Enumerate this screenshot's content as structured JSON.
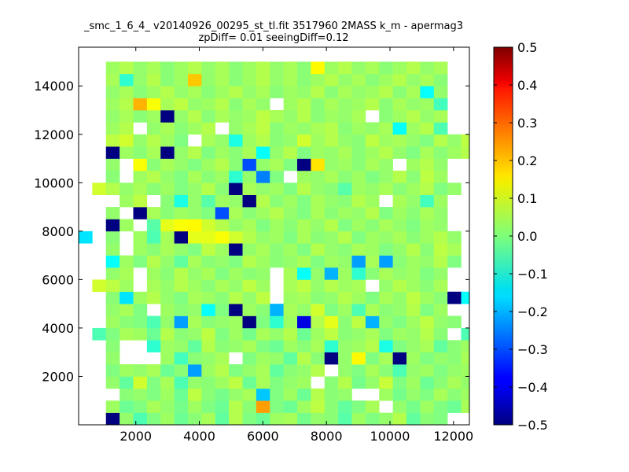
{
  "chart_data": {
    "type": "heatmap",
    "title_line1": "_smc_1_6_4_ v20140926_00295_st_tl.fit 3517960 2MASS k_m - apermag3",
    "title_line2": "zpDiff= 0.01 seeingDiff=0.12",
    "xlim": [
      200,
      12500
    ],
    "ylim": [
      0,
      15600
    ],
    "xticks": [
      2000,
      4000,
      6000,
      8000,
      10000,
      12000
    ],
    "xtick_labels": [
      "2000",
      "4000",
      "6000",
      "8000",
      "10000",
      "12000"
    ],
    "yticks": [
      2000,
      4000,
      6000,
      8000,
      10000,
      12000,
      14000
    ],
    "ytick_labels": [
      "2000",
      "4000",
      "6000",
      "8000",
      "10000",
      "12000",
      "14000"
    ],
    "colorbar": {
      "colormap": "jet",
      "range": [
        -0.5,
        0.5
      ],
      "ticks": [
        -0.5,
        -0.4,
        -0.3,
        -0.2,
        -0.1,
        0.0,
        0.1,
        0.2,
        0.3,
        0.4,
        0.5
      ],
      "tick_labels": [
        "−0.5",
        "−0.4",
        "−0.3",
        "−0.2",
        "−0.1",
        "0.0",
        "0.1",
        "0.2",
        "0.3",
        "0.4",
        "0.5"
      ]
    },
    "grid": false,
    "legend": "none",
    "cells": {
      "x_start": 200,
      "y_start": 0,
      "cell_width": 430,
      "cell_height": 500,
      "value_grid": [
        "..##############..........",
        "..##############.#########",
        "..##############..#......#",
        "..##############.#.......#",
        "..##############.........#",
        "..##############.........#",
        "..##############.........#",
        "..####################.###",
        "###########################",
        "###########################",
        "..........................."
      ],
      "rows": [
        {
          "y": 500,
          "values": [
            null,
            null,
            -0.5,
            0.02,
            -0.05,
            0.0,
            0.03,
            -0.02,
            0.01,
            0.04,
            -0.03,
            0.05,
            0.0,
            -0.02,
            0.03,
            0.04,
            -0.01,
            0.02,
            0.01,
            -0.04,
            0.03,
            0.0,
            0.02,
            0.05,
            -0.03,
            0.01,
            0.0,
            null,
            null
          ]
        },
        {
          "y": 1000,
          "values": [
            null,
            null,
            0.03,
            -0.02,
            0.0,
            0.04,
            0.02,
            -0.01,
            0.03,
            0.0,
            -0.02,
            0.05,
            0.01,
            0.22,
            0.0,
            -0.02,
            0.03,
            0.06,
            0.01,
            -0.03,
            0.0,
            0.04,
            null,
            0.02,
            -0.01,
            0.03,
            0.0,
            -0.02,
            0.04
          ]
        },
        {
          "y": 1500,
          "values": [
            null,
            null,
            null,
            0.01,
            0.02,
            0.0,
            0.03,
            -0.02,
            0.06,
            0.01,
            -0.01,
            0.02,
            0.04,
            -0.18,
            0.0,
            0.03,
            -0.02,
            0.05,
            0.01,
            0.02,
            null,
            null,
            0.03,
            -0.01,
            0.02,
            0.0,
            0.04,
            0.01,
            0.03
          ]
        },
        {
          "y": 2000,
          "values": [
            null,
            null,
            0.02,
            -0.03,
            0.08,
            0.0,
            0.04,
            -0.05,
            0.02,
            0.01,
            0.03,
            0.06,
            -0.02,
            0.04,
            0.0,
            0.02,
            0.03,
            null,
            0.01,
            0.05,
            -0.01,
            0.02,
            0.07,
            0.0,
            0.03,
            -0.02,
            0.01,
            0.04,
            0.02
          ]
        },
        {
          "y": 2500,
          "values": [
            null,
            null,
            0.0,
            0.03,
            0.02,
            0.04,
            -0.02,
            0.01,
            -0.22,
            0.03,
            0.05,
            0.0,
            0.02,
            0.04,
            -0.03,
            0.01,
            0.02,
            0.05,
            null,
            0.02,
            0.0,
            0.04,
            0.01,
            -0.05,
            0.02,
            0.03,
            0.0,
            0.02,
            0.03
          ]
        },
        {
          "y": 3000,
          "values": [
            null,
            null,
            0.02,
            null,
            null,
            null,
            0.03,
            -0.06,
            0.01,
            0.02,
            0.04,
            null,
            0.0,
            0.03,
            0.02,
            -0.03,
            0.05,
            0.01,
            -0.5,
            0.02,
            0.13,
            0.0,
            0.04,
            -0.5,
            0.03,
            0.0,
            0.02,
            0.01,
            0.04
          ]
        },
        {
          "y": 3500,
          "values": [
            null,
            null,
            0.01,
            null,
            null,
            -0.08,
            0.03,
            0.02,
            -0.03,
            0.05,
            0.01,
            0.02,
            0.04,
            0.0,
            -0.02,
            0.03,
            0.01,
            0.04,
            -0.08,
            0.02,
            0.03,
            0.05,
            -0.1,
            0.0,
            0.02,
            0.04,
            -0.03,
            0.01,
            0.03
          ]
        },
        {
          "y": 4000,
          "values": [
            null,
            -0.05,
            0.0,
            0.04,
            0.03,
            -0.02,
            0.05,
            0.01,
            0.02,
            0.06,
            0.0,
            0.03,
            -0.01,
            0.04,
            0.02,
            0.05,
            -0.02,
            0.03,
            0.06,
            0.01,
            0.02,
            0.04,
            0.0,
            0.03,
            0.02,
            0.05,
            0.01,
            null,
            -0.05
          ]
        },
        {
          "y": 4500,
          "values": [
            null,
            null,
            0.03,
            0.01,
            0.0,
            -0.05,
            0.02,
            -0.22,
            0.04,
            0.01,
            0.02,
            0.03,
            -0.5,
            0.0,
            -0.08,
            0.03,
            -0.4,
            0.05,
            0.1,
            0.01,
            0.06,
            -0.2,
            0.02,
            0.0,
            0.03,
            0.06,
            0.02,
            0.01,
            null
          ]
        },
        {
          "y": 5000,
          "values": [
            null,
            null,
            0.02,
            0.04,
            0.0,
            null,
            0.03,
            0.01,
            0.02,
            -0.12,
            0.0,
            -0.5,
            0.03,
            0.01,
            -0.2,
            0.04,
            0.02,
            0.08,
            0.0,
            0.03,
            -0.05,
            0.04,
            0.01,
            0.02,
            0.05,
            0.0,
            0.03,
            null,
            null
          ]
        },
        {
          "y": 5500,
          "values": [
            null,
            null,
            0.01,
            -0.15,
            0.03,
            0.05,
            0.02,
            0.0,
            0.04,
            0.03,
            0.01,
            0.05,
            0.02,
            0.06,
            null,
            0.03,
            0.04,
            0.01,
            0.02,
            0.05,
            0.03,
            0.0,
            0.04,
            0.02,
            0.06,
            0.03,
            0.01,
            -0.5,
            -0.12
          ]
        },
        {
          "y": 6000,
          "values": [
            null,
            0.08,
            0.06,
            0.03,
            null,
            0.04,
            0.02,
            0.05,
            0.03,
            0.01,
            0.04,
            0.02,
            0.06,
            0.03,
            null,
            0.04,
            0.06,
            0.02,
            0.05,
            0.03,
            0.04,
            null,
            0.02,
            0.05,
            0.03,
            0.01,
            0.04,
            null,
            null
          ]
        },
        {
          "y": 6500,
          "values": [
            null,
            null,
            0.02,
            0.04,
            null,
            0.03,
            0.01,
            0.05,
            0.02,
            0.04,
            0.0,
            0.03,
            0.01,
            0.02,
            null,
            0.04,
            -0.12,
            0.02,
            -0.2,
            0.03,
            -0.08,
            0.01,
            0.04,
            0.02,
            0.03,
            0.0,
            0.02,
            null,
            null
          ]
        },
        {
          "y": 7000,
          "values": [
            null,
            null,
            -0.12,
            0.03,
            0.0,
            0.05,
            0.02,
            -0.03,
            0.04,
            0.01,
            0.02,
            0.0,
            0.05,
            0.03,
            0.01,
            0.02,
            0.04,
            0.0,
            0.03,
            0.02,
            -0.22,
            0.04,
            -0.22,
            0.01,
            0.03,
            0.02,
            0.05,
            0.0,
            null
          ]
        },
        {
          "y": 7500,
          "values": [
            null,
            null,
            0.02,
            null,
            0.03,
            0.01,
            0.04,
            0.02,
            0.0,
            0.06,
            0.03,
            -0.5,
            0.02,
            0.04,
            0.01,
            0.03,
            0.0,
            0.05,
            0.02,
            0.01,
            0.04,
            0.03,
            0.0,
            0.02,
            0.05,
            0.01,
            0.06,
            0.04,
            null
          ]
        },
        {
          "y": 8000,
          "values": [
            -0.15,
            null,
            0.01,
            null,
            0.03,
            -0.05,
            0.04,
            -0.5,
            0.1,
            0.1,
            0.12,
            0.08,
            0.05,
            0.02,
            0.03,
            0.0,
            0.04,
            0.01,
            0.02,
            0.05,
            0.0,
            0.03,
            0.02,
            0.04,
            0.01,
            0.03,
            0.05,
            0.02,
            null
          ]
        },
        {
          "y": 8500,
          "values": [
            null,
            null,
            -0.5,
            0.03,
            null,
            -0.04,
            0.1,
            0.12,
            0.13,
            0.08,
            0.05,
            0.02,
            0.04,
            0.0,
            0.03,
            0.01,
            0.04,
            0.02,
            0.05,
            0.0,
            0.03,
            0.01,
            0.04,
            0.02,
            0.0,
            0.03,
            0.02,
            null,
            null
          ]
        },
        {
          "y": 9000,
          "values": [
            null,
            null,
            0.02,
            null,
            -0.5,
            0.04,
            0.01,
            0.03,
            0.02,
            0.0,
            -0.3,
            0.04,
            0.01,
            0.03,
            0.05,
            0.02,
            0.0,
            0.04,
            0.01,
            0.03,
            0.02,
            0.05,
            0.0,
            0.03,
            0.01,
            0.04,
            0.02,
            null,
            null
          ]
        },
        {
          "y": 9500,
          "values": [
            null,
            null,
            null,
            0.03,
            0.06,
            null,
            0.01,
            -0.1,
            0.02,
            -0.04,
            0.03,
            0.02,
            -0.5,
            0.05,
            0.01,
            0.03,
            0.0,
            0.04,
            0.02,
            0.01,
            0.05,
            0.03,
            null,
            0.04,
            0.02,
            -0.06,
            0.03,
            null,
            null
          ]
        },
        {
          "y": 10000,
          "values": [
            null,
            0.08,
            0.05,
            0.02,
            0.04,
            0.01,
            0.03,
            0.0,
            0.02,
            0.05,
            0.01,
            -0.5,
            0.04,
            0.02,
            0.03,
            0.0,
            0.05,
            0.02,
            0.01,
            -0.04,
            0.03,
            0.02,
            0.04,
            0.01,
            0.03,
            0.05,
            0.0,
            0.02,
            null
          ]
        },
        {
          "y": 10500,
          "values": [
            null,
            null,
            0.01,
            null,
            0.03,
            0.05,
            0.02,
            0.0,
            0.04,
            0.01,
            0.03,
            -0.08,
            0.02,
            -0.25,
            0.0,
            null,
            0.03,
            0.02,
            0.04,
            0.01,
            0.03,
            0.0,
            0.02,
            0.05,
            0.01,
            0.06,
            0.03,
            null,
            null
          ]
        },
        {
          "y": 11000,
          "values": [
            null,
            null,
            0.02,
            null,
            0.12,
            0.01,
            0.04,
            0.02,
            0.0,
            0.03,
            0.05,
            0.01,
            -0.3,
            0.02,
            0.04,
            0.0,
            -0.5,
            0.15,
            0.02,
            0.03,
            0.01,
            0.04,
            0.02,
            null,
            0.03,
            0.05,
            0.02,
            null,
            null
          ]
        },
        {
          "y": 11500,
          "values": [
            null,
            null,
            -0.5,
            0.03,
            0.01,
            0.04,
            -0.5,
            0.02,
            0.05,
            0.0,
            0.03,
            0.01,
            0.04,
            -0.12,
            0.02,
            0.05,
            0.0,
            0.03,
            0.02,
            0.04,
            0.01,
            0.03,
            0.05,
            0.02,
            0.0,
            0.04,
            0.01,
            0.03,
            0.05
          ]
        },
        {
          "y": 12000,
          "values": [
            null,
            null,
            0.06,
            0.08,
            0.02,
            0.05,
            0.03,
            0.0,
            null,
            0.04,
            0.02,
            -0.1,
            0.03,
            0.05,
            0.01,
            0.02,
            0.08,
            0.03,
            0.05,
            0.02,
            0.01,
            0.06,
            0.03,
            0.04,
            0.02,
            0.0,
            0.05,
            0.02,
            0.06
          ]
        },
        {
          "y": 12500,
          "values": [
            null,
            null,
            0.03,
            0.05,
            null,
            0.02,
            0.04,
            0.01,
            0.03,
            0.05,
            null,
            0.02,
            0.04,
            0.06,
            0.01,
            0.03,
            0.02,
            0.04,
            0.05,
            0.01,
            0.03,
            0.02,
            0.04,
            -0.12,
            0.03,
            0.05,
            -0.05,
            null,
            null
          ]
        },
        {
          "y": 13000,
          "values": [
            null,
            null,
            0.02,
            0.04,
            0.01,
            0.03,
            -0.5,
            0.02,
            0.05,
            0.01,
            0.04,
            0.02,
            0.03,
            0.06,
            0.04,
            0.02,
            0.05,
            0.01,
            0.03,
            0.02,
            0.04,
            null,
            0.01,
            0.03,
            0.05,
            0.02,
            0.04,
            null,
            null
          ]
        },
        {
          "y": 13500,
          "values": [
            null,
            null,
            0.03,
            0.05,
            0.2,
            0.12,
            0.04,
            0.06,
            0.02,
            0.03,
            0.05,
            0.01,
            0.04,
            0.02,
            null,
            0.03,
            0.05,
            0.01,
            0.04,
            0.02,
            0.03,
            0.05,
            0.01,
            0.04,
            0.02,
            0.03,
            -0.06,
            null,
            null
          ]
        },
        {
          "y": 14000,
          "values": [
            null,
            null,
            0.02,
            0.04,
            0.01,
            0.03,
            0.05,
            0.02,
            0.04,
            0.01,
            0.03,
            0.05,
            0.02,
            0.04,
            0.01,
            0.03,
            0.02,
            0.05,
            0.01,
            0.04,
            0.02,
            0.03,
            0.05,
            0.01,
            0.04,
            -0.12,
            0.02,
            null,
            null
          ]
        },
        {
          "y": 14500,
          "values": [
            null,
            null,
            0.04,
            -0.08,
            0.02,
            0.05,
            0.01,
            0.03,
            0.18,
            0.02,
            0.04,
            0.01,
            0.03,
            0.05,
            0.02,
            0.04,
            0.01,
            0.03,
            0.05,
            0.02,
            0.04,
            0.01,
            0.03,
            0.05,
            0.02,
            0.04,
            0.01,
            null,
            null
          ]
        },
        {
          "y": 15000,
          "values": [
            null,
            null,
            0.03,
            0.05,
            0.02,
            0.04,
            0.01,
            0.03,
            0.05,
            0.02,
            0.04,
            0.01,
            0.03,
            0.05,
            0.02,
            0.04,
            0.01,
            0.13,
            0.03,
            0.05,
            0.02,
            0.04,
            0.01,
            0.03,
            0.05,
            0.02,
            0.04,
            null,
            null
          ]
        }
      ]
    }
  }
}
